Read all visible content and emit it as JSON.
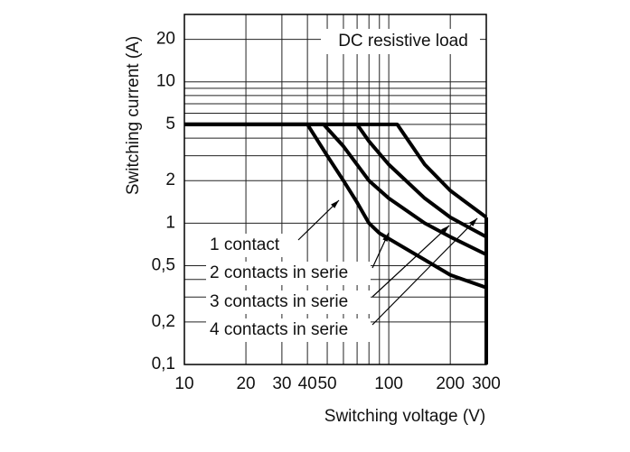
{
  "chart_data": {
    "type": "line",
    "title": "DC resistive load",
    "x_label": "Switching voltage (V)",
    "y_label": "Switching current (A)",
    "log_x": true,
    "log_y": true,
    "grid": true,
    "color": "#000000",
    "xlim": [
      10,
      300
    ],
    "ylim": [
      0.1,
      30
    ],
    "xticks": [
      10,
      20,
      30,
      40,
      50,
      100,
      200,
      300
    ],
    "xminor": [
      60,
      70,
      80,
      90
    ],
    "yticks": [
      {
        "value": 0.1,
        "label": "0,1"
      },
      {
        "value": 0.2,
        "label": "0,2"
      },
      {
        "value": 0.5,
        "label": "0,5"
      },
      1,
      2,
      5,
      10,
      20
    ],
    "yminor": [
      0.3,
      0.4,
      3,
      4,
      6,
      7,
      8,
      9
    ],
    "series": [
      {
        "name": "1 contact",
        "x": [
          10,
          40,
          50,
          60,
          70,
          80,
          90,
          150,
          200,
          300
        ],
        "values": [
          5,
          5,
          3,
          2,
          1.4,
          1,
          0.85,
          0.55,
          0.43,
          0.35
        ]
      },
      {
        "name": "2 contacts in serie",
        "x": [
          10,
          48,
          60,
          80,
          100,
          150,
          200,
          300
        ],
        "values": [
          5,
          5,
          3.5,
          2,
          1.5,
          1,
          0.8,
          0.6
        ]
      },
      {
        "name": "3 contacts in serie",
        "x": [
          10,
          70,
          80,
          100,
          150,
          200,
          300
        ],
        "values": [
          5,
          5,
          3.8,
          2.6,
          1.5,
          1.1,
          0.8
        ]
      },
      {
        "name": "4 contacts in serie",
        "x": [
          10,
          110,
          150,
          200,
          300
        ],
        "values": [
          5,
          5,
          2.6,
          1.7,
          1.1
        ]
      }
    ]
  }
}
